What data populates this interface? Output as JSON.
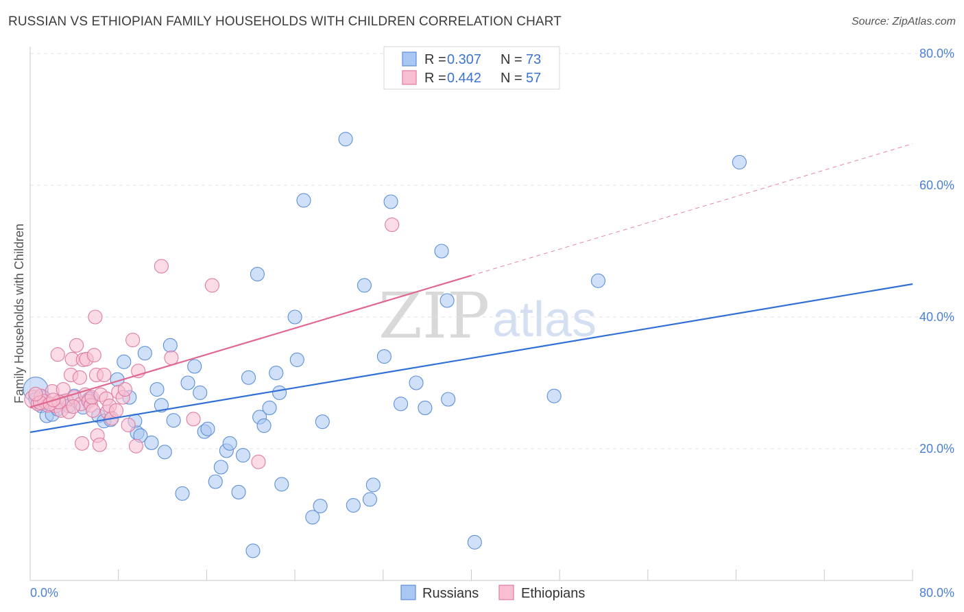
{
  "title": "RUSSIAN VS ETHIOPIAN FAMILY HOUSEHOLDS WITH CHILDREN CORRELATION CHART",
  "source": "Source: ZipAtlas.com",
  "watermark": {
    "zip": "ZIP",
    "atlas": "atlas"
  },
  "legend": {
    "r_label": "R =",
    "n_label": "N =",
    "items": [
      {
        "name": "Russians",
        "r": "0.307",
        "n": "73",
        "fill": "#aac6f2",
        "stroke": "#5c8fd8"
      },
      {
        "name": "Ethiopians",
        "r": "0.442",
        "n": "57",
        "fill": "#f7bfd1",
        "stroke": "#e07aa0"
      }
    ]
  },
  "colors": {
    "blue_line": "#2f6fd6",
    "pink_line": "#e0678f",
    "grid": "#e3e3e3",
    "axis": "#c8c8c8"
  },
  "chart_data": {
    "type": "scatter",
    "title": "RUSSIAN VS ETHIOPIAN FAMILY HOUSEHOLDS WITH CHILDREN CORRELATION CHART",
    "xlabel": "",
    "ylabel": "Family Households with Children",
    "xlim": [
      0,
      80
    ],
    "ylim": [
      0,
      80
    ],
    "x_tick_labels": [
      "0.0%",
      "80.0%"
    ],
    "y_ticks": [
      20,
      40,
      60,
      80
    ],
    "y_tick_labels": [
      "20.0%",
      "40.0%",
      "60.0%",
      "80.0%"
    ],
    "series": [
      {
        "name": "Russians",
        "trend": {
          "x0": 0,
          "y0": 22.5,
          "x1": 80,
          "y1": 45.0
        },
        "points": [
          [
            0.5,
            29.0,
            18
          ],
          [
            0.5,
            27.5,
            10
          ],
          [
            1.0,
            26.5,
            10
          ],
          [
            1.2,
            27.8,
            10
          ],
          [
            1.5,
            25.0,
            10
          ],
          [
            2.0,
            25.2,
            10
          ],
          [
            2.5,
            26.0,
            10
          ],
          [
            3.0,
            27.2,
            10
          ],
          [
            3.5,
            26.5,
            10
          ],
          [
            4.0,
            28.0,
            10
          ],
          [
            4.8,
            26.3,
            10
          ],
          [
            5.3,
            27.5,
            10
          ],
          [
            5.5,
            27.6,
            10
          ],
          [
            6.2,
            25.0,
            10
          ],
          [
            6.7,
            24.2,
            10
          ],
          [
            7.3,
            24.4,
            10
          ],
          [
            7.9,
            30.5,
            10
          ],
          [
            8.5,
            33.2,
            10
          ],
          [
            9.0,
            27.8,
            10
          ],
          [
            9.5,
            24.2,
            10
          ],
          [
            9.7,
            22.4,
            10
          ],
          [
            10.0,
            22.0,
            10
          ],
          [
            10.4,
            34.5,
            10
          ],
          [
            11.0,
            20.9,
            10
          ],
          [
            11.5,
            29.0,
            10
          ],
          [
            11.9,
            26.6,
            10
          ],
          [
            12.2,
            19.5,
            10
          ],
          [
            12.7,
            35.7,
            10
          ],
          [
            13.0,
            24.3,
            10
          ],
          [
            13.8,
            13.2,
            10
          ],
          [
            14.3,
            30.0,
            10
          ],
          [
            14.9,
            32.5,
            10
          ],
          [
            15.4,
            28.5,
            10
          ],
          [
            15.8,
            22.6,
            10
          ],
          [
            16.1,
            23.0,
            10
          ],
          [
            16.8,
            15.0,
            10
          ],
          [
            17.3,
            17.2,
            10
          ],
          [
            17.8,
            19.7,
            10
          ],
          [
            18.1,
            20.8,
            10
          ],
          [
            18.9,
            13.4,
            10
          ],
          [
            19.3,
            19.0,
            10
          ],
          [
            19.8,
            30.8,
            10
          ],
          [
            20.2,
            4.5,
            10
          ],
          [
            20.6,
            46.5,
            10
          ],
          [
            20.8,
            24.8,
            10
          ],
          [
            21.2,
            23.5,
            10
          ],
          [
            21.7,
            26.2,
            10
          ],
          [
            22.3,
            31.5,
            10
          ],
          [
            22.6,
            28.5,
            10
          ],
          [
            22.8,
            14.6,
            10
          ],
          [
            24.0,
            40.0,
            10
          ],
          [
            24.2,
            33.5,
            10
          ],
          [
            24.8,
            57.7,
            10
          ],
          [
            25.6,
            9.6,
            10
          ],
          [
            26.3,
            11.3,
            10
          ],
          [
            26.5,
            24.1,
            10
          ],
          [
            28.6,
            67.0,
            10
          ],
          [
            29.3,
            11.4,
            10
          ],
          [
            30.3,
            44.8,
            10
          ],
          [
            30.8,
            12.3,
            10
          ],
          [
            31.1,
            14.5,
            10
          ],
          [
            32.1,
            34.0,
            10
          ],
          [
            32.7,
            57.5,
            10
          ],
          [
            33.6,
            26.8,
            10
          ],
          [
            35.0,
            30.0,
            10
          ],
          [
            35.8,
            26.2,
            10
          ],
          [
            37.3,
            50.0,
            10
          ],
          [
            37.8,
            42.5,
            10
          ],
          [
            37.9,
            27.5,
            10
          ],
          [
            40.3,
            5.8,
            10
          ],
          [
            47.5,
            28.0,
            10
          ],
          [
            51.5,
            45.5,
            10
          ],
          [
            64.3,
            63.5,
            10
          ]
        ]
      },
      {
        "name": "Ethiopians",
        "trend": {
          "x0": 0,
          "y0": 26.3,
          "x1": 40,
          "y1": 46.3
        },
        "trend_dashed_to": {
          "x": 80,
          "y": 66.3
        },
        "points": [
          [
            0.3,
            27.5,
            13
          ],
          [
            0.7,
            26.8,
            10
          ],
          [
            1.0,
            28.0,
            10
          ],
          [
            1.3,
            27.2,
            10
          ],
          [
            1.6,
            26.6,
            10
          ],
          [
            2.0,
            28.7,
            10
          ],
          [
            2.3,
            26.5,
            10
          ],
          [
            2.5,
            34.3,
            10
          ],
          [
            2.8,
            25.8,
            10
          ],
          [
            3.0,
            29.0,
            10
          ],
          [
            3.3,
            27.3,
            10
          ],
          [
            3.5,
            25.6,
            10
          ],
          [
            3.7,
            31.2,
            10
          ],
          [
            3.8,
            33.6,
            10
          ],
          [
            4.0,
            27.8,
            10
          ],
          [
            4.2,
            35.7,
            10
          ],
          [
            4.5,
            30.8,
            10
          ],
          [
            4.6,
            26.8,
            10
          ],
          [
            4.7,
            20.8,
            10
          ],
          [
            4.8,
            33.5,
            10
          ],
          [
            5.0,
            28.2,
            10
          ],
          [
            5.1,
            33.6,
            10
          ],
          [
            5.3,
            27.2,
            10
          ],
          [
            5.5,
            26.6,
            10
          ],
          [
            5.6,
            27.8,
            10
          ],
          [
            5.7,
            25.8,
            10
          ],
          [
            5.8,
            34.2,
            10
          ],
          [
            5.9,
            40.0,
            10
          ],
          [
            6.0,
            31.2,
            10
          ],
          [
            6.1,
            22.0,
            10
          ],
          [
            6.3,
            20.6,
            10
          ],
          [
            6.4,
            28.2,
            10
          ],
          [
            6.7,
            31.2,
            10
          ],
          [
            6.9,
            27.6,
            10
          ],
          [
            7.0,
            25.6,
            10
          ],
          [
            7.2,
            26.5,
            10
          ],
          [
            7.4,
            24.6,
            10
          ],
          [
            7.8,
            25.8,
            10
          ],
          [
            8.0,
            28.6,
            10
          ],
          [
            8.4,
            27.8,
            10
          ],
          [
            8.6,
            29.0,
            10
          ],
          [
            8.9,
            23.6,
            10
          ],
          [
            9.3,
            36.5,
            10
          ],
          [
            9.6,
            20.4,
            10
          ],
          [
            9.8,
            31.8,
            10
          ],
          [
            11.9,
            47.7,
            10
          ],
          [
            12.8,
            33.8,
            10
          ],
          [
            14.8,
            24.5,
            10
          ],
          [
            16.5,
            44.8,
            10
          ],
          [
            20.7,
            18.0,
            10
          ],
          [
            32.8,
            54.0,
            10
          ],
          [
            0.9,
            27.0,
            10
          ],
          [
            1.8,
            26.8,
            10
          ],
          [
            2.6,
            27.1,
            10
          ],
          [
            3.9,
            26.4,
            10
          ],
          [
            0.5,
            28.3,
            10
          ],
          [
            2.1,
            27.4,
            10
          ]
        ]
      }
    ]
  }
}
